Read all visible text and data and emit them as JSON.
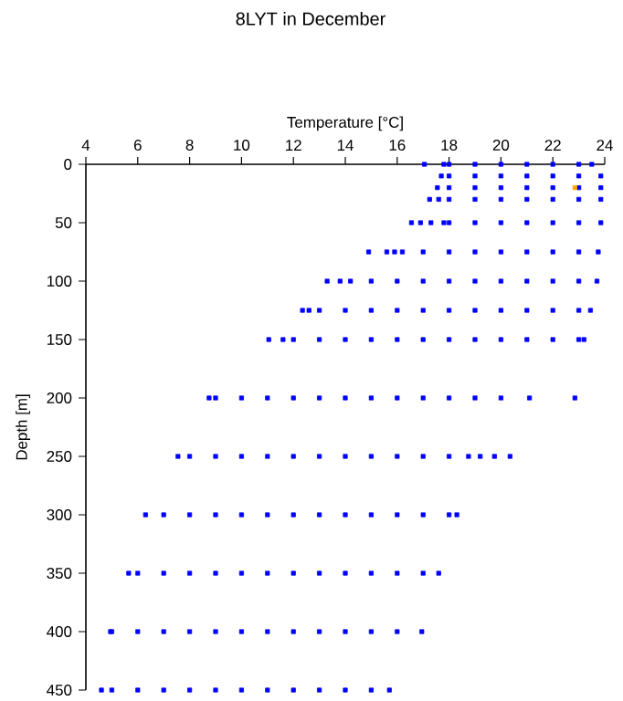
{
  "chart_data": {
    "type": "scatter",
    "title": "8LYT in December",
    "xlabel": "Temperature [°C]",
    "ylabel": "Depth [m]",
    "xlim": [
      4,
      24
    ],
    "xticks": [
      4,
      6,
      8,
      10,
      12,
      14,
      16,
      18,
      20,
      22,
      24
    ],
    "ylim": [
      450,
      0
    ],
    "yticks": [
      0,
      50,
      100,
      150,
      200,
      250,
      300,
      350,
      400,
      450
    ],
    "marker": "square",
    "grid": false,
    "series": [
      {
        "color": "#0000ff",
        "x": [
          17.05,
          17.8,
          18,
          19,
          20,
          21,
          22,
          23,
          23.5,
          17.7,
          18,
          19,
          20,
          21,
          22,
          23,
          23.85,
          17.55,
          18,
          19,
          20,
          21,
          22,
          23,
          23.85,
          17.25,
          17.6,
          18,
          19,
          20,
          21,
          22,
          23,
          23.85,
          16.55,
          16.9,
          17.3,
          17.8,
          18,
          19,
          20,
          21,
          22,
          23,
          23.85,
          14.9,
          15.6,
          15.9,
          16.2,
          17,
          18,
          19,
          20,
          21,
          22,
          23,
          23.75,
          13.3,
          13.8,
          14.2,
          15,
          16,
          17,
          18,
          19,
          20,
          21,
          22,
          23,
          23.7,
          12.35,
          12.6,
          13,
          14,
          15,
          16,
          17,
          18,
          19,
          20,
          21,
          22,
          23,
          23.45,
          11.05,
          11.6,
          12,
          13,
          14,
          15,
          16,
          17,
          18,
          19,
          20,
          21,
          22,
          23,
          23.2,
          8.75,
          9,
          10,
          11,
          12,
          13,
          14,
          15,
          16,
          17,
          18,
          19,
          20,
          21.1,
          22.85,
          7.55,
          8,
          9,
          10,
          11,
          12,
          13,
          14,
          15,
          16,
          17,
          18,
          18.75,
          19.2,
          19.75,
          20.35,
          6.3,
          7,
          8,
          9,
          10,
          11,
          12,
          13,
          14,
          15,
          16,
          17,
          18,
          18.3,
          5.65,
          6,
          7,
          8,
          9,
          10,
          11,
          12,
          13,
          14,
          15,
          16,
          17,
          17.6,
          4.95,
          5,
          6,
          7,
          8,
          9,
          10,
          11,
          12,
          13,
          14,
          15,
          16,
          16.95,
          4.6,
          5,
          6,
          7,
          8,
          9,
          10,
          11,
          12,
          13,
          14,
          15,
          15.7
        ],
        "values": [
          0,
          0,
          0,
          0,
          0,
          0,
          0,
          0,
          0,
          10,
          10,
          10,
          10,
          10,
          10,
          10,
          10,
          20,
          20,
          20,
          20,
          20,
          20,
          20,
          20,
          30,
          30,
          30,
          30,
          30,
          30,
          30,
          30,
          30,
          50,
          50,
          50,
          50,
          50,
          50,
          50,
          50,
          50,
          50,
          50,
          75,
          75,
          75,
          75,
          75,
          75,
          75,
          75,
          75,
          75,
          75,
          75,
          100,
          100,
          100,
          100,
          100,
          100,
          100,
          100,
          100,
          100,
          100,
          100,
          100,
          125,
          125,
          125,
          125,
          125,
          125,
          125,
          125,
          125,
          125,
          125,
          125,
          125,
          125,
          150,
          150,
          150,
          150,
          150,
          150,
          150,
          150,
          150,
          150,
          150,
          150,
          150,
          150,
          150,
          200,
          200,
          200,
          200,
          200,
          200,
          200,
          200,
          200,
          200,
          200,
          200,
          200,
          200,
          200,
          250,
          250,
          250,
          250,
          250,
          250,
          250,
          250,
          250,
          250,
          250,
          250,
          250,
          250,
          250,
          250,
          300,
          300,
          300,
          300,
          300,
          300,
          300,
          300,
          300,
          300,
          300,
          300,
          300,
          300,
          350,
          350,
          350,
          350,
          350,
          350,
          350,
          350,
          350,
          350,
          350,
          350,
          350,
          350,
          400,
          400,
          400,
          400,
          400,
          400,
          400,
          400,
          400,
          400,
          400,
          400,
          400,
          400,
          450,
          450,
          450,
          450,
          450,
          450,
          450,
          450,
          450,
          450,
          450,
          450,
          450
        ]
      },
      {
        "color": "#ffa500",
        "x": [
          22.85
        ],
        "values": [
          20
        ]
      }
    ]
  }
}
